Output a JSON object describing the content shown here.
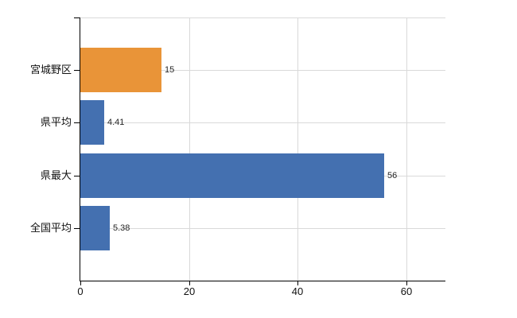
{
  "chart_data": {
    "type": "bar",
    "orientation": "horizontal",
    "title": "",
    "xlabel": "",
    "ylabel": "",
    "categories": [
      "宮城野区",
      "県平均",
      "県最大",
      "全国平均"
    ],
    "values": [
      15,
      4.41,
      56,
      5.38
    ],
    "value_labels": [
      "15",
      "4.41",
      "56",
      "5.38"
    ],
    "bar_colors": [
      "#e99438",
      "#4470b0",
      "#4470b0",
      "#4470b0"
    ],
    "x_ticks": [
      0,
      20,
      40,
      60
    ],
    "x_tick_labels": [
      "0",
      "20",
      "40",
      "60"
    ],
    "xlim": [
      0,
      67.25
    ],
    "grid": true,
    "legend": null,
    "colors": {
      "highlight_bar": "#e99438",
      "default_bar": "#4470b0",
      "grid": "#d9d9d9",
      "axis": "#000000",
      "text": "#111111",
      "value_text": "#262626",
      "background": "#ffffff"
    }
  }
}
